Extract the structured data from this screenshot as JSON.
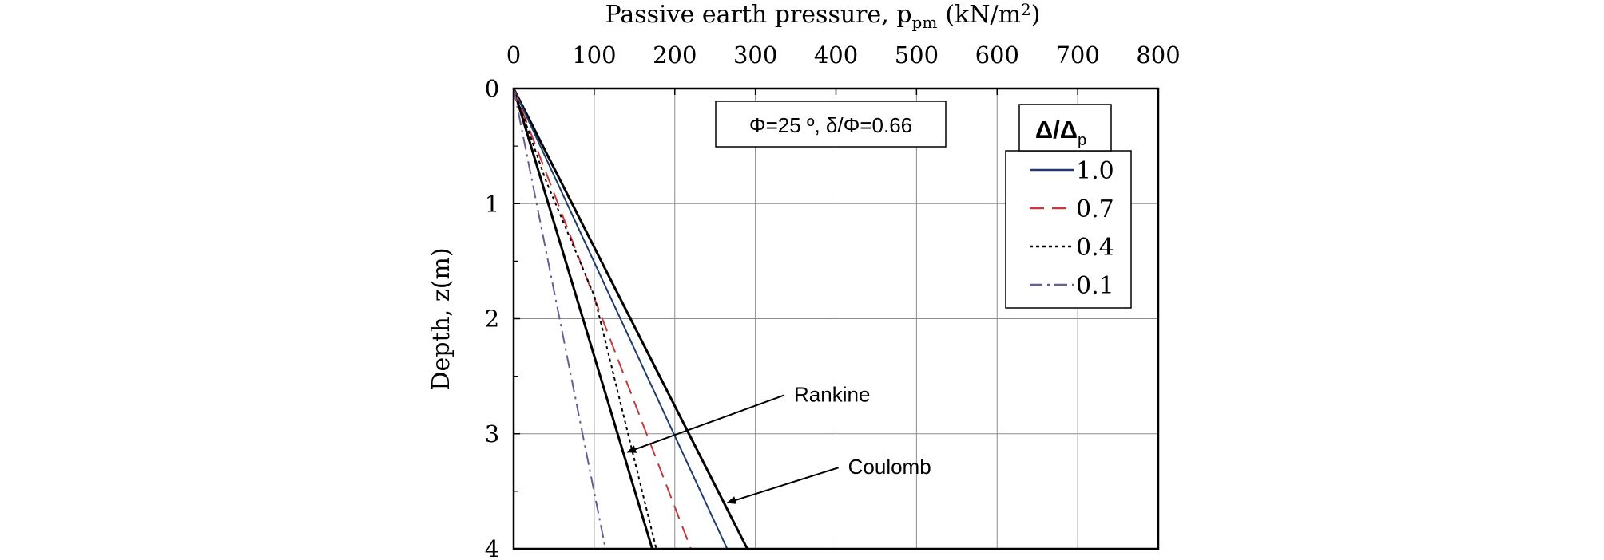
{
  "chart_data": {
    "type": "line",
    "title": "",
    "xlabel": "Passive earth pressure, p",
    "xlabel_sub": "pm",
    "xlabel_unit": "(kN/m",
    "xlabel_sup": "2",
    "xlabel_close": ")",
    "ylabel": "Depth, z(m)",
    "xlim": [
      0,
      800
    ],
    "ylim": [
      0,
      4
    ],
    "x_axis_position": "top",
    "y_inverted": true,
    "grid": true,
    "x_ticks": [
      0,
      100,
      200,
      300,
      400,
      500,
      600,
      700,
      800
    ],
    "y_ticks": [
      0,
      1,
      2,
      3,
      4
    ],
    "x_tick_labels": [
      "0",
      "100",
      "200",
      "300",
      "400",
      "500",
      "600",
      "700",
      "800"
    ],
    "y_tick_labels": [
      "0",
      "1",
      "2",
      "3",
      "4"
    ],
    "param_box": "Φ=25 º, δ/Φ=0.66",
    "legend": {
      "title": "Δ/Δ",
      "title_sub": "p",
      "placement": "top-right"
    },
    "series": [
      {
        "name": "1.0",
        "color": "#1f3b6e",
        "dash": "solid",
        "points": [
          [
            0,
            0
          ],
          [
            265,
            4
          ]
        ]
      },
      {
        "name": "0.7",
        "color": "#c0393b",
        "dash": "dashed",
        "points": [
          [
            0,
            0
          ],
          [
            220,
            4
          ]
        ]
      },
      {
        "name": "0.4",
        "color": "#000000",
        "dash": "dotted",
        "points": [
          [
            0,
            0
          ],
          [
            40,
            0.8
          ],
          [
            70,
            1.3
          ],
          [
            100,
            1.8
          ],
          [
            177,
            4
          ]
        ]
      },
      {
        "name": "0.1",
        "color": "#6b5b95",
        "dash": "dashdot",
        "points": [
          [
            0,
            0
          ],
          [
            114,
            4
          ]
        ]
      }
    ],
    "reference_lines": [
      {
        "name": "Rankine",
        "color": "#000000",
        "points": [
          [
            0,
            0
          ],
          [
            172,
            4
          ]
        ]
      },
      {
        "name": "Coulomb",
        "color": "#000000",
        "points": [
          [
            0,
            0
          ],
          [
            290,
            4
          ]
        ]
      }
    ],
    "annotations": [
      {
        "text": "Rankine",
        "text_at": [
          348,
          2.72
        ],
        "arrow_to": [
          141,
          3.16
        ]
      },
      {
        "text": "Coulomb",
        "text_at": [
          415,
          3.35
        ],
        "arrow_to": [
          265,
          3.6
        ]
      }
    ]
  }
}
